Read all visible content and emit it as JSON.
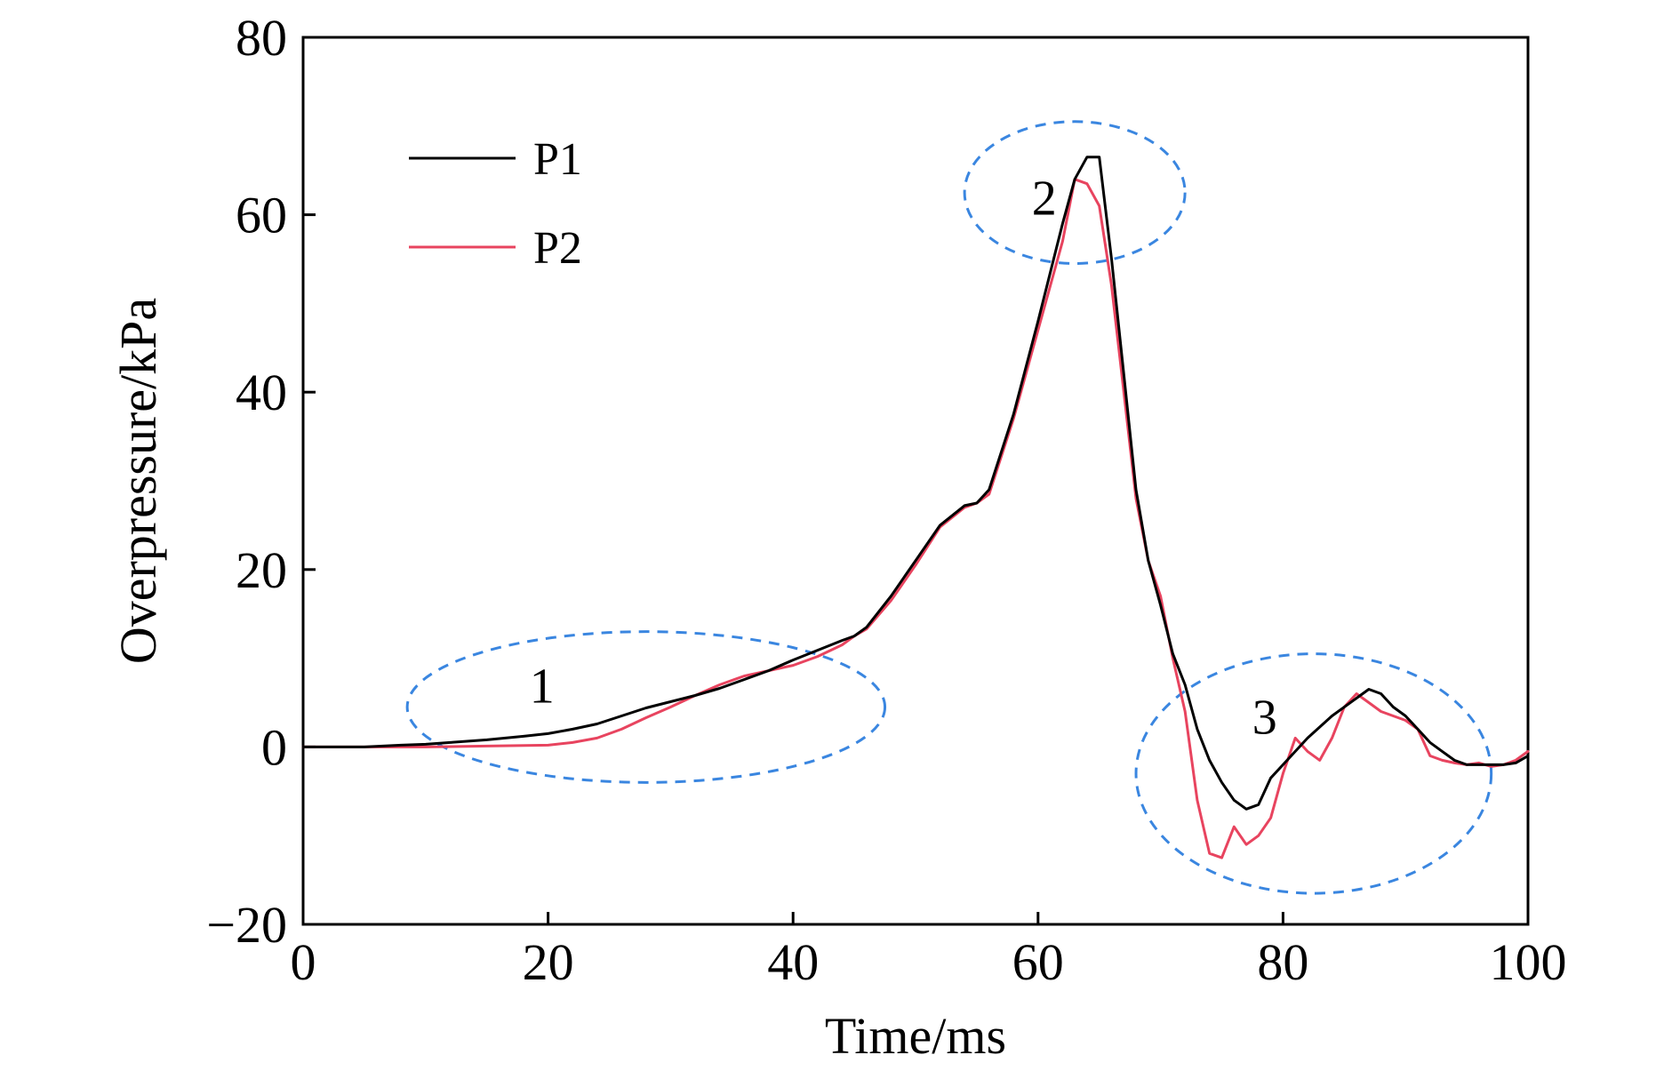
{
  "chart_data": {
    "type": "line",
    "xlabel": "Time/ms",
    "ylabel": "Overpressure/kPa",
    "xlim": [
      0,
      100
    ],
    "ylim": [
      -20,
      80
    ],
    "xticks": [
      "0",
      "20",
      "40",
      "60",
      "80",
      "100"
    ],
    "yticks": [
      "−20",
      "0",
      "20",
      "40",
      "60",
      "80"
    ],
    "grid": false,
    "legend_position": "top-left",
    "series": [
      {
        "name": "P1",
        "color": "#000000",
        "x": [
          0,
          5,
          8,
          10,
          12,
          15,
          18,
          20,
          22,
          24,
          26,
          28,
          30,
          32,
          34,
          36,
          38,
          40,
          42,
          44,
          45,
          46,
          48,
          50,
          52,
          54,
          55,
          56,
          58,
          60,
          62,
          63,
          64,
          65,
          66,
          67,
          68,
          69,
          70,
          71,
          72,
          73,
          74,
          75,
          76,
          77,
          78,
          79,
          80,
          82,
          84,
          86,
          87,
          88,
          89,
          90,
          91,
          92,
          93,
          94,
          95,
          96,
          97,
          98,
          99,
          100
        ],
        "y": [
          0,
          0,
          0.2,
          0.3,
          0.5,
          0.8,
          1.2,
          1.5,
          2.0,
          2.6,
          3.5,
          4.4,
          5.1,
          5.8,
          6.6,
          7.6,
          8.6,
          9.8,
          10.9,
          12.0,
          12.5,
          13.5,
          17.0,
          21.0,
          25.0,
          27.2,
          27.5,
          29.0,
          37.5,
          48.0,
          59.0,
          64.0,
          66.5,
          66.5,
          55.0,
          42.0,
          29.0,
          21.0,
          16.0,
          10.5,
          7.0,
          2.0,
          -1.5,
          -4.0,
          -6.0,
          -7.0,
          -6.5,
          -3.5,
          -2.0,
          1.0,
          3.5,
          5.5,
          6.5,
          6.0,
          4.5,
          3.5,
          2.0,
          0.5,
          -0.5,
          -1.5,
          -2.0,
          -2.0,
          -2.0,
          -2.0,
          -1.8,
          -1.0
        ]
      },
      {
        "name": "P2",
        "color": "#e8445f",
        "x": [
          0,
          5,
          10,
          15,
          20,
          22,
          24,
          26,
          28,
          30,
          32,
          34,
          36,
          38,
          40,
          42,
          44,
          45,
          46,
          48,
          50,
          52,
          54,
          55,
          56,
          58,
          60,
          62,
          63,
          64,
          65,
          66,
          67,
          68,
          69,
          70,
          71,
          72,
          73,
          74,
          75,
          76,
          77,
          78,
          79,
          80,
          81,
          82,
          83,
          84,
          85,
          86,
          87,
          88,
          89,
          90,
          91,
          92,
          93,
          94,
          95,
          96,
          97,
          98,
          99,
          100
        ],
        "y": [
          0,
          0,
          0,
          0.1,
          0.2,
          0.5,
          1.0,
          2.0,
          3.3,
          4.5,
          5.8,
          7.0,
          8.0,
          8.6,
          9.2,
          10.2,
          11.5,
          12.5,
          13.3,
          16.5,
          20.5,
          24.8,
          27.0,
          27.5,
          28.5,
          37.0,
          47.0,
          57.0,
          64.0,
          63.5,
          61.0,
          52.0,
          40.0,
          28.0,
          21.0,
          17.0,
          10.0,
          4.0,
          -6.0,
          -12.0,
          -12.5,
          -9.0,
          -11.0,
          -10.0,
          -8.0,
          -3.0,
          1.0,
          -0.5,
          -1.5,
          1.0,
          4.5,
          6.0,
          5.0,
          4.0,
          3.5,
          3.0,
          2.0,
          -1.0,
          -1.5,
          -1.8,
          -2.0,
          -1.8,
          -2.2,
          -2.0,
          -1.5,
          -0.5
        ]
      }
    ],
    "annotations": [
      {
        "label": "1",
        "cx": 28.0,
        "cy": 4.5,
        "rx": 19.5,
        "ry": 8.5,
        "label_x": 19.5,
        "label_y": 7.0
      },
      {
        "label": "2",
        "cx": 63.0,
        "cy": 62.5,
        "rx": 9.0,
        "ry": 8.0,
        "label_x": 60.5,
        "label_y": 62.0
      },
      {
        "label": "3",
        "cx": 82.5,
        "cy": -3.0,
        "rx": 14.5,
        "ry": 13.5,
        "label_x": 78.5,
        "label_y": 3.5
      }
    ]
  }
}
